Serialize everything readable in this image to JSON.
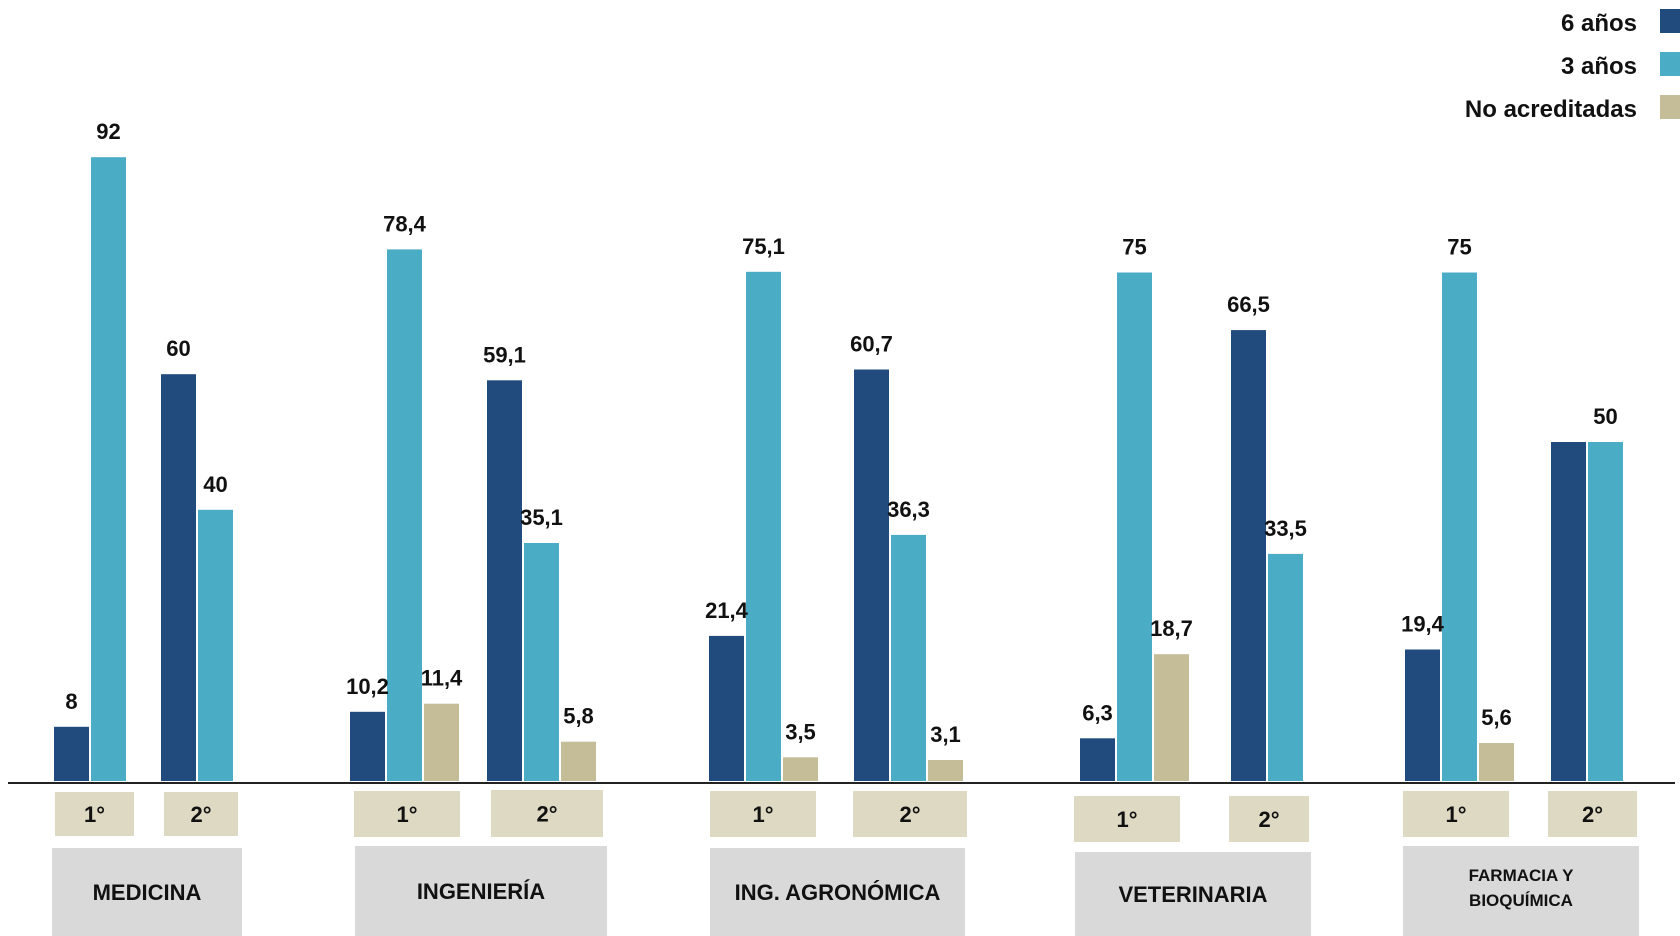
{
  "colors": {
    "six_years": "#214a7d",
    "three_years": "#4bacc6",
    "no_accredited": "#c4bd97",
    "period_box": "#ddd9c3",
    "group_box": "#d9d9d9",
    "axis": "#222222"
  },
  "chart_data": {
    "type": "bar",
    "title": "",
    "xlabel": "",
    "ylabel": "",
    "ylim": [
      0,
      100
    ],
    "grid": false,
    "legend_position": "top-right",
    "series": [
      {
        "name": "6 años",
        "color_key": "six_years"
      },
      {
        "name": "3 años",
        "color_key": "three_years"
      },
      {
        "name": "No acreditadas",
        "color_key": "no_accredited"
      }
    ],
    "groups": [
      {
        "name": "MEDICINA",
        "periods": [
          {
            "label": "1°",
            "values": [
              8,
              92,
              null
            ]
          },
          {
            "label": "2°",
            "values": [
              60,
              40,
              null
            ]
          }
        ]
      },
      {
        "name": "INGENIERÍA",
        "periods": [
          {
            "label": "1°",
            "values": [
              10.2,
              78.4,
              11.4
            ]
          },
          {
            "label": "2°",
            "values": [
              59.1,
              35.1,
              5.8
            ]
          }
        ]
      },
      {
        "name": "ING. AGRONÓMICA",
        "periods": [
          {
            "label": "1°",
            "values": [
              21.4,
              75.1,
              3.5
            ]
          },
          {
            "label": "2°",
            "values": [
              60.7,
              36.3,
              3.1
            ]
          }
        ]
      },
      {
        "name": "VETERINARIA",
        "periods": [
          {
            "label": "1°",
            "values": [
              6.3,
              75,
              18.7
            ]
          },
          {
            "label": "2°",
            "values": [
              66.5,
              33.5,
              null
            ]
          }
        ]
      },
      {
        "name": "FARMACIA Y BIOQUÍMICA",
        "periods": [
          {
            "label": "1°",
            "values": [
              19.4,
              75,
              5.6
            ]
          },
          {
            "label": "2°",
            "values": [
              50,
              50,
              null
            ]
          }
        ]
      }
    ],
    "data_labels": {
      "MEDICINA": [
        [
          "8",
          "92",
          null
        ],
        [
          "60",
          "40",
          null
        ]
      ],
      "INGENIERÍA": [
        [
          "10,2",
          "78,4",
          "11,4"
        ],
        [
          "59,1",
          "35,1",
          "5,8"
        ]
      ],
      "ING. AGRONÓMICA": [
        [
          "21,4",
          "75,1",
          "3,5"
        ],
        [
          "60,7",
          "36,3",
          "3,1"
        ]
      ],
      "VETERINARIA": [
        [
          "6,3",
          "75",
          "18,7"
        ],
        [
          "66,5",
          "33,5",
          null
        ]
      ],
      "FARMACIA Y BIOQUÍMICA": [
        [
          "19,4",
          "75",
          "5,6"
        ],
        [
          "",
          "50",
          null
        ]
      ]
    }
  }
}
